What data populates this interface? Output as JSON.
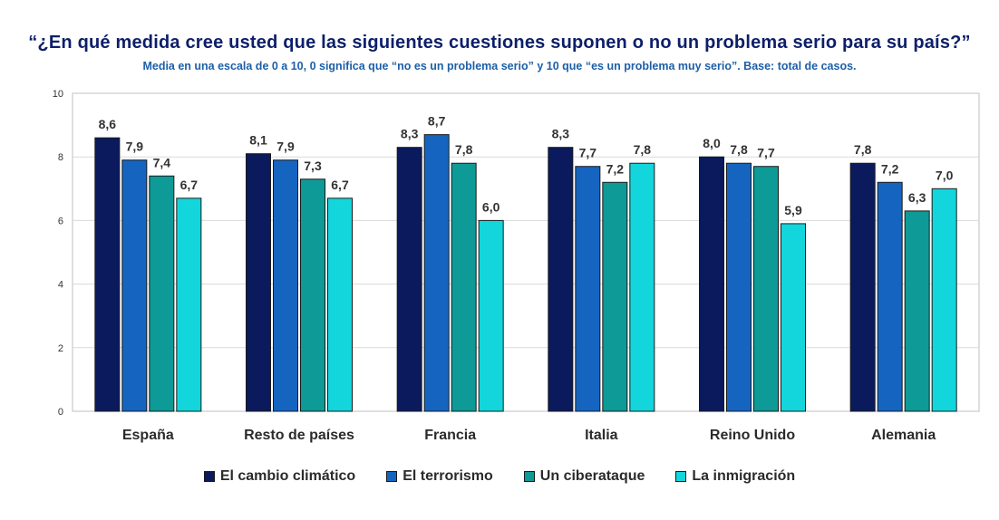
{
  "title": "“¿En qué medida cree usted que las siguientes cuestiones suponen o no un problema serio para  su país?”",
  "subtitle": "Media en una escala de 0 a 10, 0 significa que “no es un problema serio” y 10 que “es un problema muy serio”. Base: total de casos.",
  "chart_data": {
    "type": "bar",
    "categories": [
      "España",
      "Resto de países",
      "Francia",
      "Italia",
      "Reino Unido",
      "Alemania"
    ],
    "series": [
      {
        "name": "El cambio climático",
        "color": "#0a1a5c",
        "values": [
          8.6,
          8.1,
          8.3,
          8.3,
          8.0,
          7.8
        ],
        "labels": [
          "8,6",
          "8,1",
          "8,3",
          "8,3",
          "8,0",
          "7,8"
        ]
      },
      {
        "name": "El terrorismo",
        "color": "#1565c0",
        "values": [
          7.9,
          7.9,
          8.7,
          7.7,
          7.8,
          7.2
        ],
        "labels": [
          "7,9",
          "7,9",
          "8,7",
          "7,7",
          "7,8",
          "7,2"
        ]
      },
      {
        "name": "Un ciberataque",
        "color": "#0e9a96",
        "values": [
          7.4,
          7.3,
          7.8,
          7.2,
          7.7,
          6.3
        ],
        "labels": [
          "7,4",
          "7,3",
          "7,8",
          "7,2",
          "7,7",
          "6,3"
        ]
      },
      {
        "name": "La inmigración",
        "color": "#12d6dc",
        "values": [
          6.7,
          6.7,
          6.0,
          7.8,
          5.9,
          7.0
        ],
        "labels": [
          "6,7",
          "6,7",
          "6,0",
          "7,8",
          "5,9",
          "7,0"
        ]
      }
    ],
    "yticks": [
      "0",
      "2",
      "4",
      "6",
      "8",
      "10"
    ],
    "ylim": [
      0,
      10
    ],
    "grid": true,
    "legend_position": "bottom"
  }
}
